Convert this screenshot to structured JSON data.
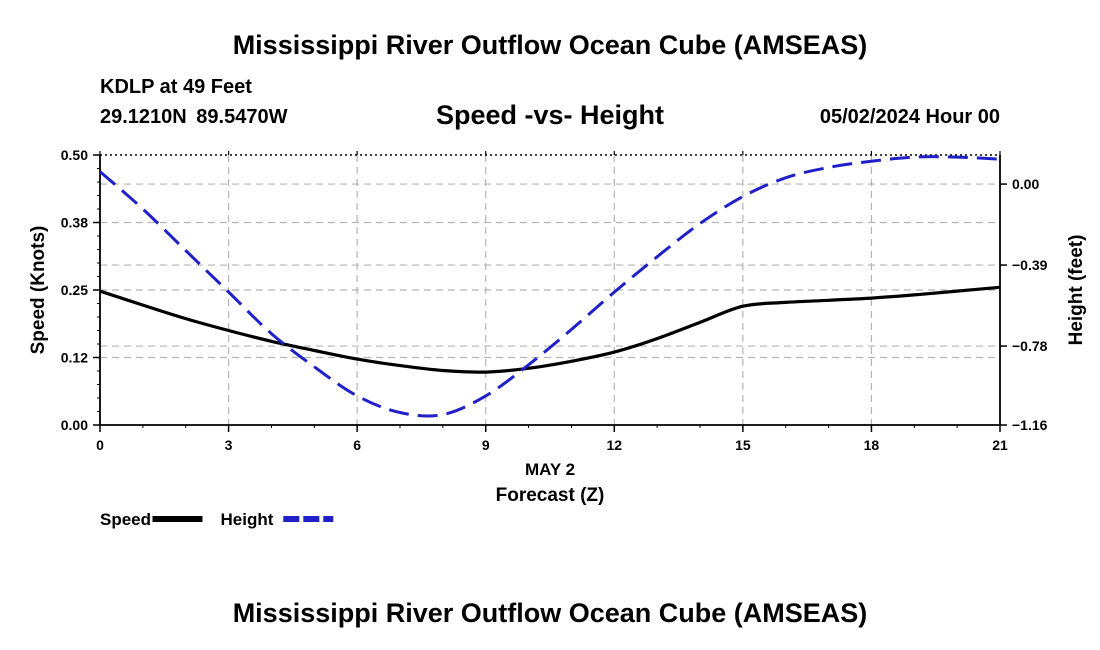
{
  "header": {
    "title": "Mississippi River Outflow Ocean Cube (AMSEAS)",
    "station": "KDLP at 49 Feet",
    "coordinates": "29.1210N  89.5470W",
    "subtitle": "Speed -vs- Height",
    "datetime": "05/02/2024 Hour 00"
  },
  "footer": {
    "title": "Mississippi River Outflow Ocean Cube (AMSEAS)"
  },
  "chart_data": {
    "type": "line",
    "title": "Speed -vs- Height",
    "xlabel": "Forecast (Z)",
    "xdate_label": "MAY 2",
    "ylabel": "Speed (Knots)",
    "y2label": "Height (feet)",
    "xlim": [
      0,
      21
    ],
    "ylim": [
      0,
      0.5
    ],
    "y2lim": [
      -1.16,
      0.14
    ],
    "x_ticks": [
      "0",
      "3",
      "6",
      "9",
      "12",
      "15",
      "18",
      "21"
    ],
    "y_ticks": [
      "0.00",
      "0.12",
      "0.25",
      "0.38",
      "0.50"
    ],
    "y_tick_values": [
      0,
      0.125,
      0.25,
      0.375,
      0.5
    ],
    "y2_ticks": [
      "0.00",
      "−0.39",
      "−0.78",
      "−1.16"
    ],
    "y2_tick_values": [
      0,
      -0.39,
      -0.78,
      -1.16
    ],
    "grid": true,
    "legend_position": "bottom-left",
    "series": [
      {
        "name": "Speed",
        "axis": "left",
        "color": "#000000",
        "style": "solid",
        "x": [
          0,
          1,
          2,
          3,
          4,
          5,
          6,
          7,
          8,
          9,
          10,
          11,
          12,
          13,
          14,
          15,
          16,
          17,
          18,
          19,
          20,
          21
        ],
        "values": [
          0.248,
          0.222,
          0.197,
          0.175,
          0.155,
          0.138,
          0.122,
          0.11,
          0.101,
          0.098,
          0.105,
          0.118,
          0.135,
          0.16,
          0.19,
          0.22,
          0.227,
          0.231,
          0.235,
          0.241,
          0.248,
          0.255
        ]
      },
      {
        "name": "Height",
        "axis": "right",
        "color": "#2020c8",
        "style": "dashed",
        "x": [
          0,
          1,
          2,
          3,
          4,
          5,
          6,
          7,
          8,
          9,
          10,
          11,
          12,
          13,
          14,
          15,
          16,
          17,
          18,
          19,
          20,
          21
        ],
        "values": [
          0.06,
          -0.12,
          -0.32,
          -0.52,
          -0.72,
          -0.88,
          -1.02,
          -1.1,
          -1.11,
          -1.02,
          -0.87,
          -0.7,
          -0.52,
          -0.35,
          -0.19,
          -0.06,
          0.03,
          0.08,
          0.11,
          0.13,
          0.13,
          0.12
        ]
      }
    ]
  }
}
